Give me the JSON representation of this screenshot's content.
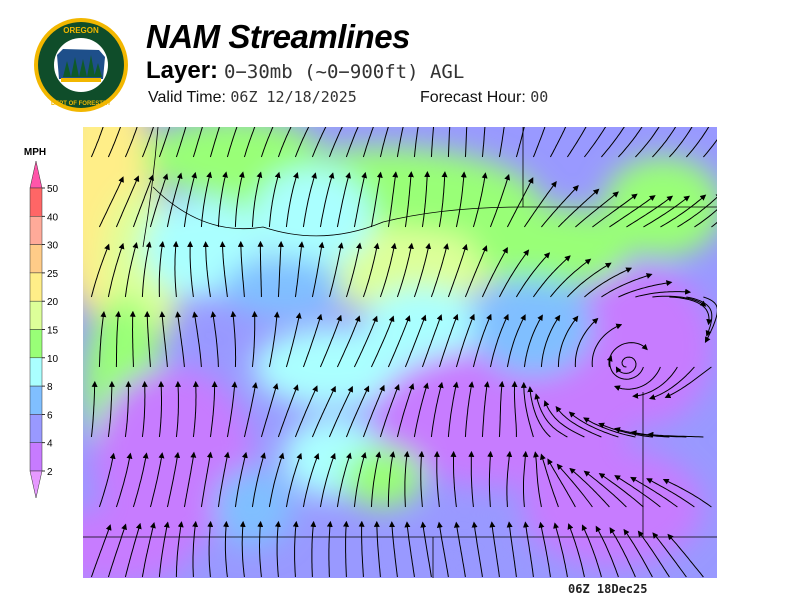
{
  "header": {
    "title": "NAM Streamlines",
    "layer_label": "Layer:",
    "layer_value": "0−30mb (~0−900ft) AGL",
    "valid_label": "Valid Time:",
    "valid_value": "06Z 12/18/2025",
    "forecast_label": "Forecast Hour:",
    "forecast_value": "00"
  },
  "logo": {
    "text_top": "OREGON",
    "text_bottom": "DEPARTMENT OF FORESTRY"
  },
  "legend": {
    "unit": "MPH",
    "bins": [
      {
        "label": "2",
        "color": "#c77bff"
      },
      {
        "label": "4",
        "color": "#9999ff"
      },
      {
        "label": "6",
        "color": "#80bfff"
      },
      {
        "label": "8",
        "color": "#aaffff"
      },
      {
        "label": "10",
        "color": "#99ff77"
      },
      {
        "label": "15",
        "color": "#ddff99"
      },
      {
        "label": "20",
        "color": "#ffee88"
      },
      {
        "label": "25",
        "color": "#ffcc88"
      },
      {
        "label": "30",
        "color": "#ffaa99"
      },
      {
        "label": "40",
        "color": "#ff6666"
      },
      {
        "label": "50",
        "color": "#ff55aa"
      }
    ],
    "below_color": "#e699ff"
  },
  "footer": {
    "stamp": "06Z 18Dec25"
  }
}
